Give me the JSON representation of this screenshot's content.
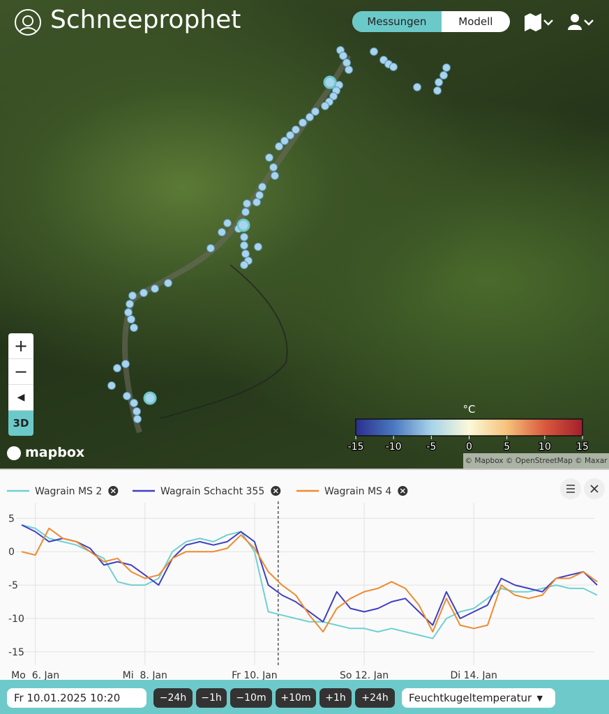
{
  "header": {
    "title": "Schneeprophet",
    "tabs": [
      "Messungen",
      "Modell"
    ]
  },
  "map": {
    "zoom_controls": [
      "+",
      "−",
      "3D"
    ],
    "logo": "mapbox",
    "attribution": "© Mapbox © OpenStreetMap © Maxar",
    "colorbar": {
      "label": "°C",
      "lim": [
        -15,
        15
      ],
      "ticks": [
        -15,
        -10,
        -5,
        0,
        5,
        10,
        15
      ],
      "colors": [
        "#2b2f8f",
        "#4a78c0",
        "#a8d3e8",
        "#fbf9d8",
        "#f5c27a",
        "#d9593e",
        "#a31f2c"
      ]
    }
  },
  "chart_data": {
    "type": "line",
    "x": [
      "2025-01-05 18:00",
      "2025-01-06 00:00",
      "2025-01-06 06:00",
      "2025-01-06 12:00",
      "2025-01-06 18:00",
      "2025-01-07 00:00",
      "2025-01-07 06:00",
      "2025-01-07 12:00",
      "2025-01-07 18:00",
      "2025-01-08 00:00",
      "2025-01-08 06:00",
      "2025-01-08 12:00",
      "2025-01-08 18:00",
      "2025-01-09 00:00",
      "2025-01-09 06:00",
      "2025-01-09 12:00",
      "2025-01-09 18:00",
      "2025-01-10 00:00",
      "2025-01-10 06:00",
      "2025-01-10 12:00",
      "2025-01-10 18:00",
      "2025-01-11 00:00",
      "2025-01-11 06:00",
      "2025-01-11 12:00",
      "2025-01-11 18:00",
      "2025-01-12 00:00",
      "2025-01-12 06:00",
      "2025-01-12 12:00",
      "2025-01-12 18:00",
      "2025-01-13 00:00",
      "2025-01-13 06:00",
      "2025-01-13 12:00",
      "2025-01-13 18:00",
      "2025-01-14 00:00",
      "2025-01-14 06:00",
      "2025-01-14 12:00",
      "2025-01-14 18:00",
      "2025-01-15 00:00",
      "2025-01-15 06:00",
      "2025-01-15 12:00",
      "2025-01-15 18:00",
      "2025-01-16 00:00",
      "2025-01-16 06:00"
    ],
    "series": [
      {
        "name": "Wagrain MS 2",
        "color": "#6fd0d0",
        "values": [
          4,
          3.5,
          2,
          1.5,
          1,
          0,
          -1,
          -4.5,
          -5,
          -5,
          -4,
          0,
          1.5,
          2,
          1.5,
          2.5,
          3,
          0,
          -9,
          -9.5,
          -10,
          -10.5,
          -10.5,
          -11,
          -11.5,
          -11.5,
          -12,
          -11.5,
          -12,
          -12.5,
          -13,
          -10,
          -9,
          -8.5,
          -7,
          -5.5,
          -6,
          -6,
          -5.5,
          -5,
          -5.5,
          -5.5,
          -6.5
        ]
      },
      {
        "name": "Wagrain Schacht 355",
        "color": "#3f3fc4",
        "values": [
          4,
          3,
          1.5,
          2,
          1.5,
          0.5,
          -2,
          -1.5,
          -2,
          -3.5,
          -5,
          -1,
          1,
          1.5,
          1,
          1.5,
          3,
          1.5,
          -5,
          -6.5,
          -7.5,
          -9,
          -10.5,
          -6,
          -8.5,
          -9,
          -8.5,
          -7.5,
          -7,
          -9,
          -11,
          -6,
          -10,
          -9,
          -8,
          -4,
          -5,
          -5.5,
          -6,
          -4,
          -3.5,
          -3,
          -5
        ]
      },
      {
        "name": "Wagrain MS 4",
        "color": "#ef8a2e",
        "values": [
          0,
          -0.5,
          3.5,
          2,
          1.5,
          0,
          -1.5,
          -1,
          -3,
          -4,
          -3.5,
          -1,
          0,
          0,
          0,
          0.5,
          2.5,
          0.5,
          -3,
          -5,
          -6.5,
          -9.5,
          -12,
          -8.5,
          -7,
          -6,
          -5.5,
          -4.5,
          -5.5,
          -8,
          -12,
          -7,
          -11,
          -11.5,
          -11,
          -5,
          -6.5,
          -7,
          -6.5,
          -4,
          -4,
          -3,
          -4.5
        ]
      }
    ],
    "xlim": [
      "2025-01-05 18:00",
      "2025-01-16 06:00"
    ],
    "xticks": [
      {
        "value": "2025-01-06 00:00",
        "label": "Mo  6. Jan"
      },
      {
        "value": "2025-01-08 00:00",
        "label": "Mi  8. Jan"
      },
      {
        "value": "2025-01-10 00:00",
        "label": "Fr 10. Jan"
      },
      {
        "value": "2025-01-12 00:00",
        "label": "So 12. Jan"
      },
      {
        "value": "2025-01-14 00:00",
        "label": "Di 14. Jan"
      }
    ],
    "ylim": [
      -17,
      6.5
    ],
    "yticks": [
      5,
      0,
      -5,
      -10,
      -15
    ],
    "grid": true,
    "cursor": "2025-01-10 10:20"
  },
  "controls": {
    "datetime": "Fr 10.01.2025 10:20",
    "steps": [
      "−24h",
      "−1h",
      "−10m",
      "+10m",
      "+1h",
      "+24h"
    ],
    "variable": "Feuchtkugeltemperatur"
  }
}
